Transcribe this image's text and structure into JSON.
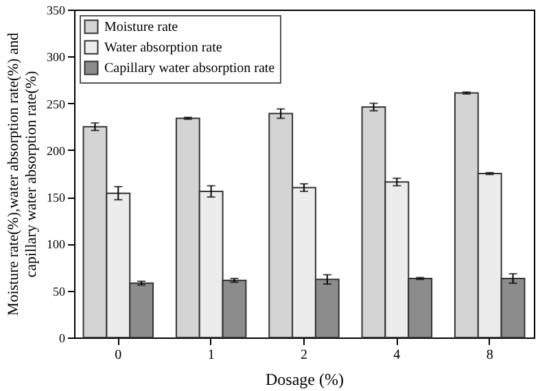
{
  "chart_data": {
    "type": "bar",
    "xlabel": "Dosage (%)",
    "ylabel": "Moisture rate(%),water absorption rate(%) and capillary water absorption rate(%)",
    "categories": [
      "0",
      "1",
      "2",
      "4",
      "8"
    ],
    "series": [
      {
        "name": "Moisture rate",
        "color": "#d4d4d4",
        "values": [
          225,
          234,
          239,
          246,
          261
        ],
        "errors": [
          4,
          1,
          5,
          4,
          1
        ]
      },
      {
        "name": "Water absorption rate",
        "color": "#ececec",
        "values": [
          154,
          156,
          160,
          166,
          175
        ],
        "errors": [
          7,
          6,
          4,
          4,
          1
        ]
      },
      {
        "name": "Capillary water absorption rate",
        "color": "#8c8c8c",
        "values": [
          58,
          61,
          62,
          63,
          63
        ],
        "errors": [
          2,
          2,
          5,
          1,
          5
        ]
      }
    ],
    "ylim": [
      0,
      350
    ],
    "yticks": [
      0,
      50,
      100,
      150,
      200,
      250,
      300,
      350
    ],
    "grid": false,
    "legend": "top left"
  }
}
